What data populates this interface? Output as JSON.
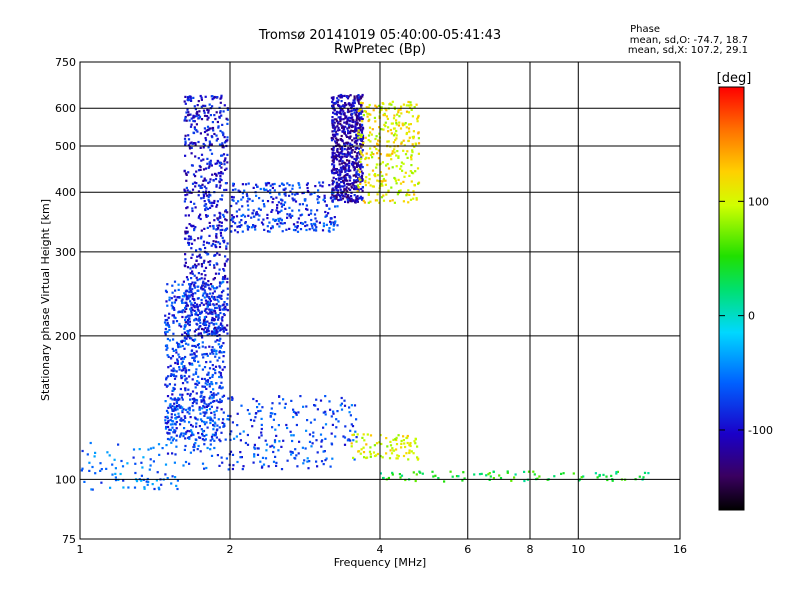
{
  "chart_data": {
    "type": "scatter",
    "title": "Tromsø 20141019 05:40:00-05:41:43",
    "subtitle": "RwPretec (Bp)",
    "xlabel": "Frequency [MHz]",
    "ylabel": "Stationary phase Virtual Height [km]",
    "x_scale": "log2",
    "y_scale": "log",
    "xlim": [
      1,
      16
    ],
    "ylim": [
      75,
      750
    ],
    "x_ticks": [
      1,
      2,
      4,
      6,
      8,
      10,
      16
    ],
    "x_tick_labels": [
      "1",
      "2",
      "4",
      "6",
      "8",
      "10",
      "16"
    ],
    "y_ticks": [
      75,
      100,
      200,
      300,
      400,
      500,
      600,
      750
    ],
    "y_tick_labels": [
      "75",
      "100",
      "200",
      "300",
      "400",
      "500",
      "600",
      "750"
    ],
    "grid": true,
    "phase_info": {
      "title": "Phase",
      "o_line": "mean, sd,O: -74.7, 18.7",
      "x_line": "mean, sd,X: 107.2, 29.1"
    },
    "colorbar": {
      "unit": "[deg]",
      "range": [
        -170,
        200
      ],
      "ticks": [
        100,
        0,
        -100
      ],
      "tick_labels": [
        "100",
        "0",
        "-100"
      ],
      "colormap": "rainbow"
    },
    "clusters": [
      {
        "trace": "O-mode F-region vertical band",
        "x": [
          1.62,
          1.98
        ],
        "y": [
          200,
          640
        ],
        "phase_mean": -95,
        "density": "high"
      },
      {
        "trace": "O-mode F-region lower band",
        "x": [
          1.48,
          1.95
        ],
        "y": [
          120,
          260
        ],
        "phase_mean": -75,
        "density": "high"
      },
      {
        "trace": "O-mode F-layer curved trace",
        "x": [
          2.0,
          3.3
        ],
        "y": [
          330,
          420
        ],
        "phase_mean": -80,
        "density": "medium"
      },
      {
        "trace": "O-mode F2 cusp",
        "x": [
          3.2,
          3.7
        ],
        "y": [
          380,
          640
        ],
        "phase_mean": -110,
        "density": "high"
      },
      {
        "trace": "X-mode F2 trace",
        "x": [
          3.6,
          4.8
        ],
        "y": [
          380,
          620
        ],
        "phase_mean": 110,
        "density": "medium"
      },
      {
        "trace": "E-region lower trace",
        "x": [
          1.5,
          3.6
        ],
        "y": [
          105,
          150
        ],
        "phase_mean": -70,
        "density": "medium"
      },
      {
        "trace": "X-mode E trace",
        "x": [
          3.5,
          4.8
        ],
        "y": [
          110,
          125
        ],
        "phase_mean": 105,
        "density": "low"
      },
      {
        "trace": "Es horizontal trace",
        "x": [
          4.0,
          14.0
        ],
        "y": [
          99,
          104
        ],
        "phase_mean": 40,
        "density": "low"
      },
      {
        "trace": "Low-frequency scatter",
        "x": [
          1.0,
          1.6
        ],
        "y": [
          95,
          120
        ],
        "phase_mean": -55,
        "density": "low"
      }
    ]
  }
}
